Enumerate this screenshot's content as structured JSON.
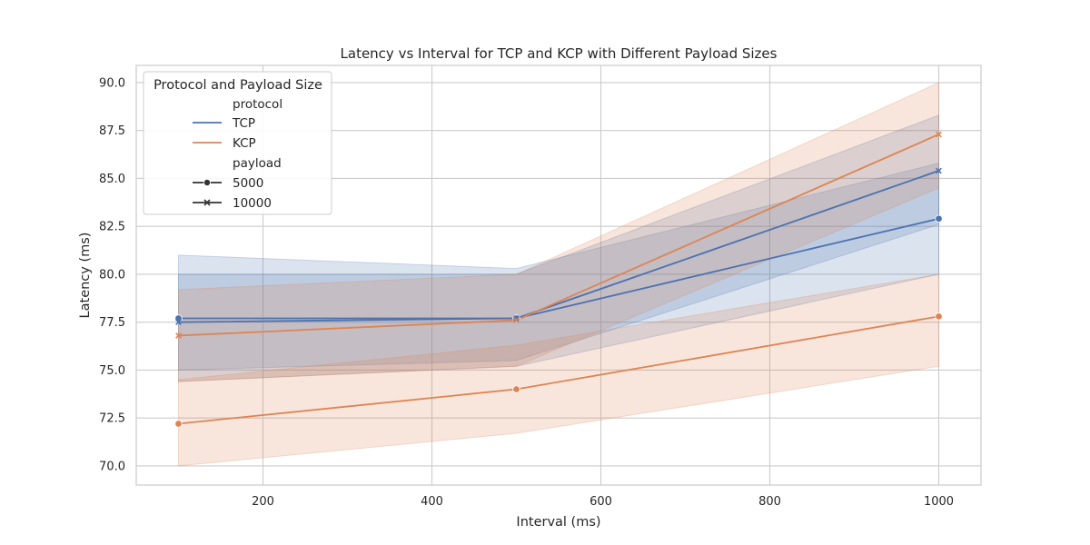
{
  "chart_data": {
    "type": "line",
    "title": "Latency vs Interval for TCP and KCP with Different Payload Sizes",
    "xlabel": "Interval (ms)",
    "ylabel": "Latency (ms)",
    "xlim": [
      50,
      1050
    ],
    "ylim": [
      69.0,
      90.9
    ],
    "xticks": [
      200,
      400,
      600,
      800,
      1000
    ],
    "yticks": [
      70.0,
      72.5,
      75.0,
      77.5,
      80.0,
      82.5,
      85.0,
      87.5,
      90.0
    ],
    "x": [
      100,
      500,
      1000
    ],
    "grid": true,
    "legend": {
      "title": "Protocol and Payload Size",
      "placement": "top-left",
      "protocol_header": "protocol",
      "payload_header": "payload",
      "protocols": [
        {
          "label": "TCP",
          "color": "#4c72b0"
        },
        {
          "label": "KCP",
          "color": "#dd8452"
        }
      ],
      "payloads": [
        {
          "label": "5000",
          "marker": "circle"
        },
        {
          "label": "10000",
          "marker": "x"
        }
      ]
    },
    "series": [
      {
        "name": "TCP 5000",
        "protocol": "TCP",
        "payload": "5000",
        "marker": "circle",
        "color": "#4c72b0",
        "values": [
          77.7,
          77.7,
          82.9
        ],
        "ci_low": [
          74.4,
          75.2,
          80.0
        ],
        "ci_high": [
          81.0,
          80.3,
          85.8
        ]
      },
      {
        "name": "TCP 10000",
        "protocol": "TCP",
        "payload": "10000",
        "marker": "x",
        "color": "#4c72b0",
        "values": [
          77.5,
          77.7,
          85.4
        ],
        "ci_low": [
          75.0,
          75.5,
          82.6
        ],
        "ci_high": [
          80.0,
          80.0,
          88.3
        ]
      },
      {
        "name": "KCP 5000",
        "protocol": "KCP",
        "payload": "5000",
        "marker": "circle",
        "color": "#dd8452",
        "values": [
          72.2,
          74.0,
          77.8
        ],
        "ci_low": [
          70.0,
          71.7,
          75.2
        ],
        "ci_high": [
          74.5,
          76.3,
          80.0
        ]
      },
      {
        "name": "KCP 10000",
        "protocol": "KCP",
        "payload": "10000",
        "marker": "x",
        "color": "#dd8452",
        "values": [
          76.8,
          77.6,
          87.3
        ],
        "ci_low": [
          74.4,
          75.2,
          84.5
        ],
        "ci_high": [
          79.2,
          80.0,
          90.0
        ]
      }
    ]
  }
}
